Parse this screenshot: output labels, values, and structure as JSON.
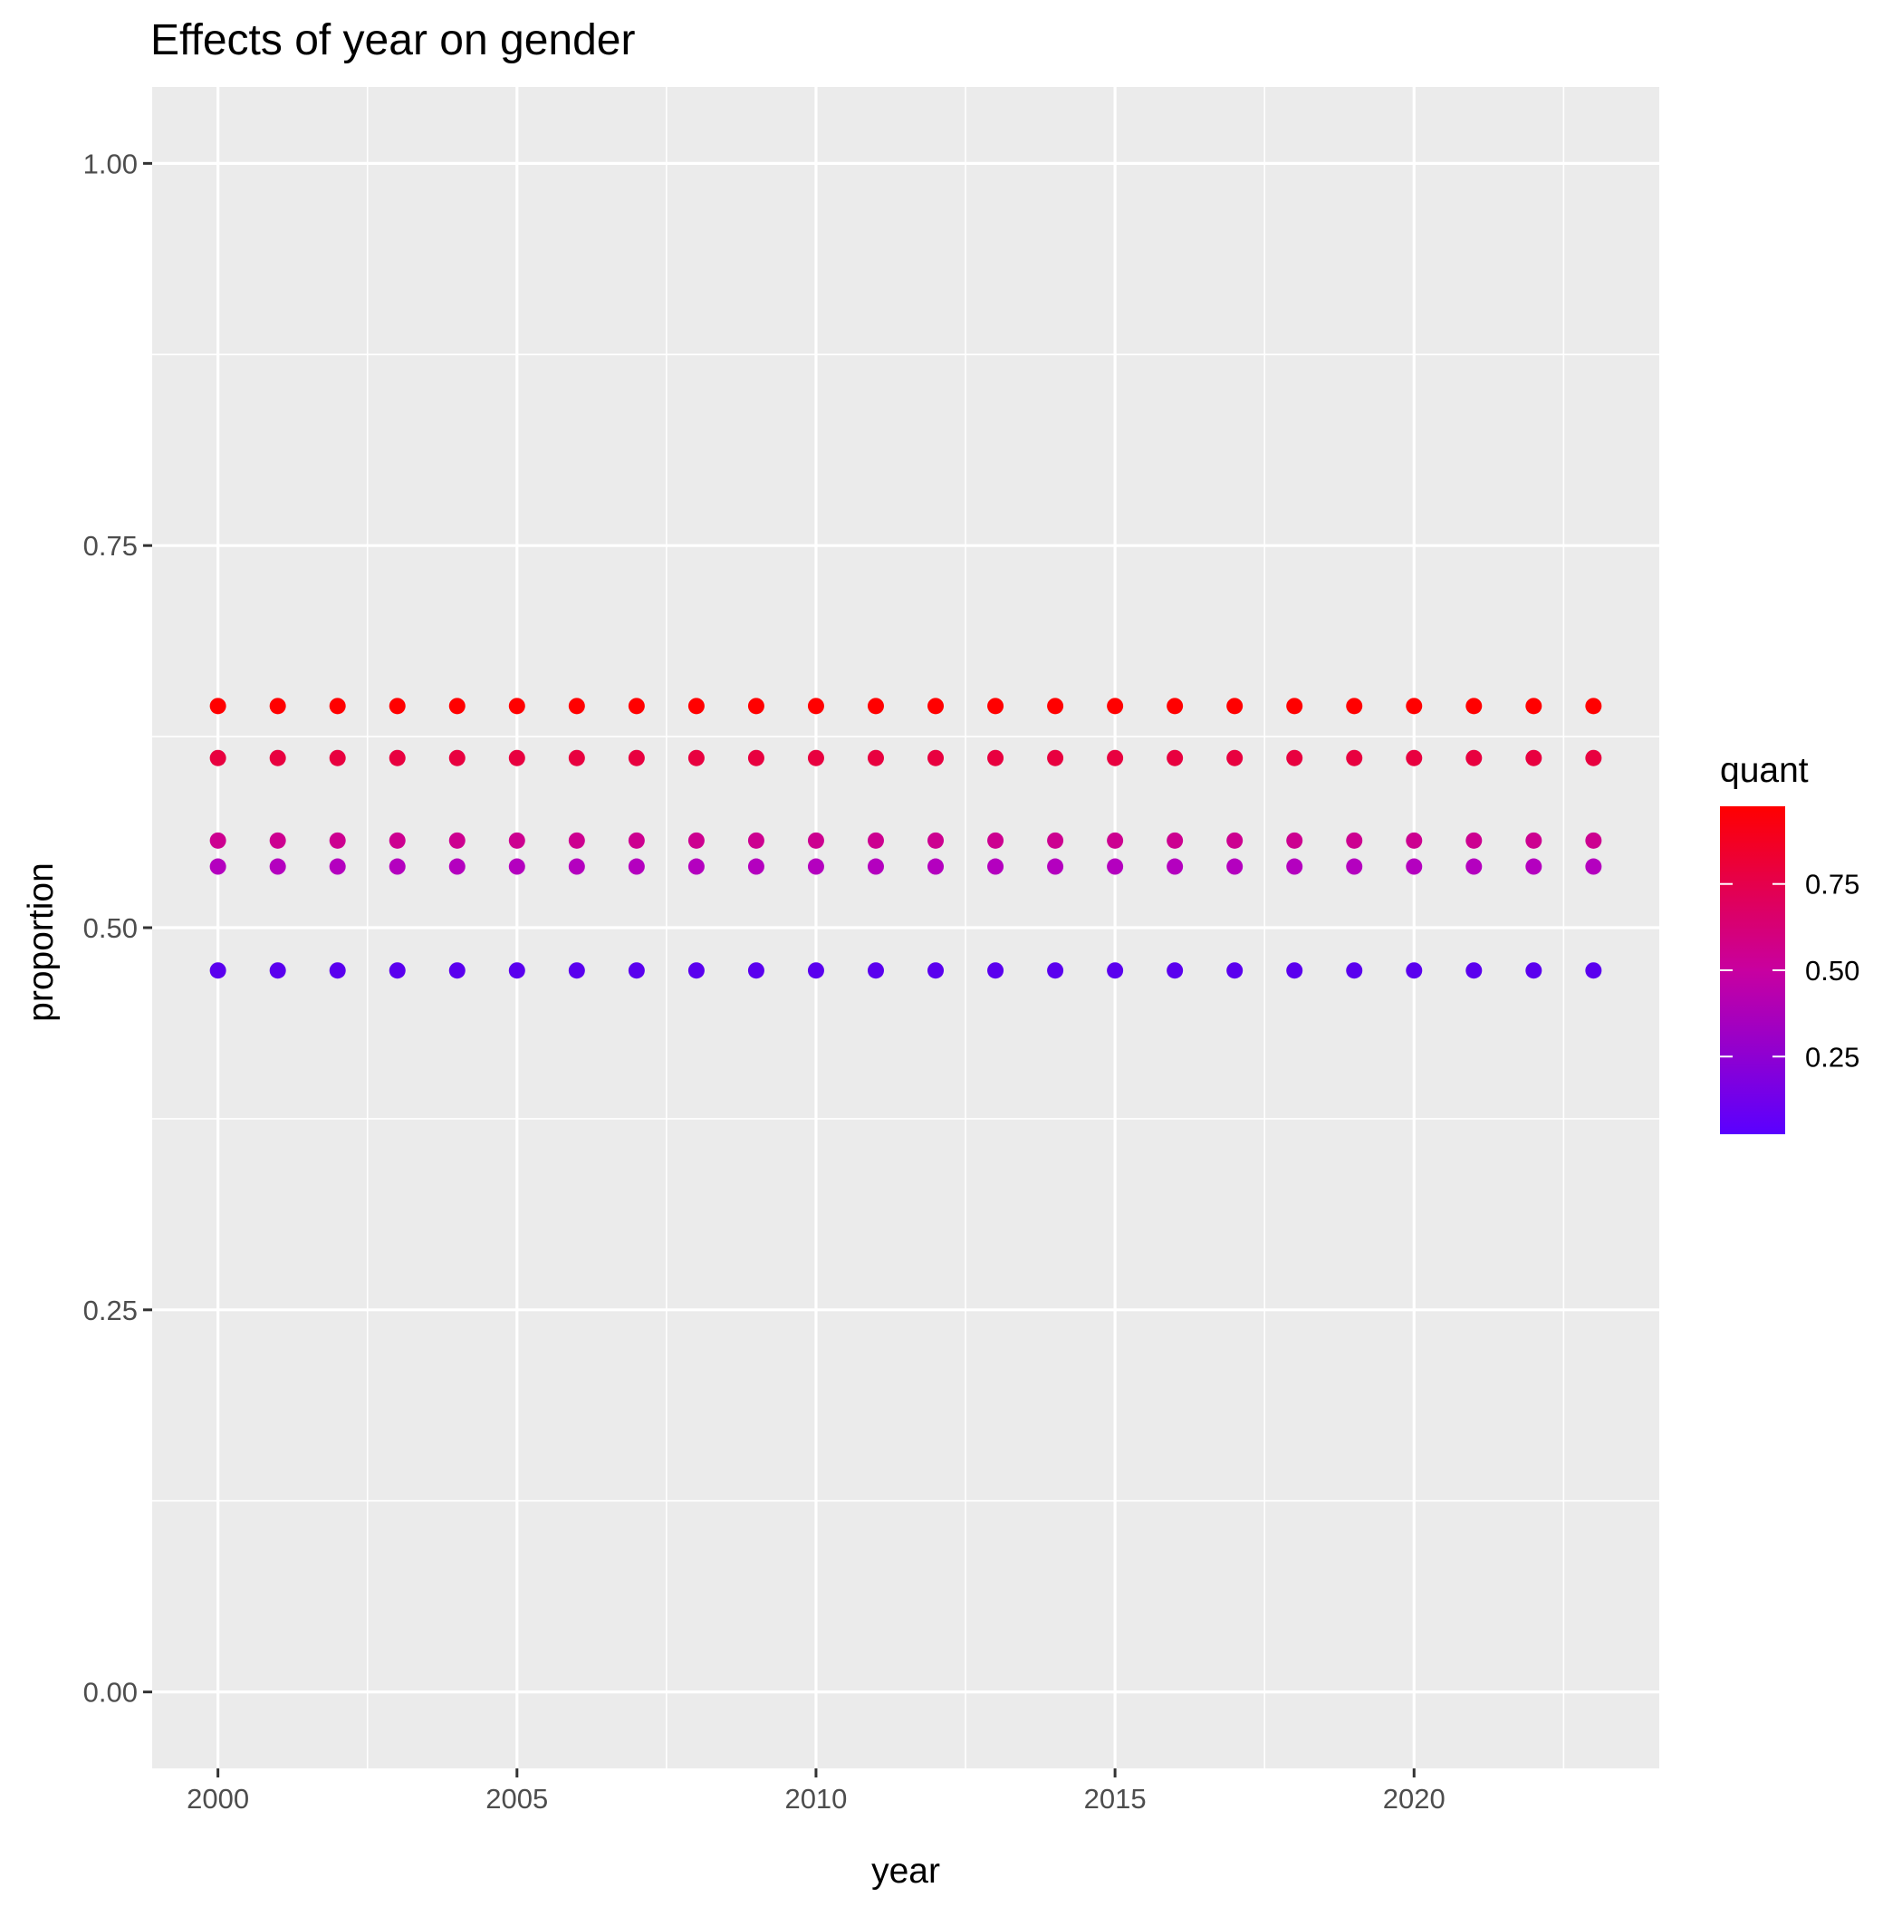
{
  "chart_data": {
    "type": "scatter",
    "title": "Effects of year on gender",
    "xlabel": "year",
    "ylabel": "proportion",
    "xlim": [
      1998.9,
      2024.1
    ],
    "ylim": [
      -0.05,
      1.05
    ],
    "x_ticks": [
      2000,
      2005,
      2010,
      2015,
      2020
    ],
    "x_tick_labels": [
      "2000",
      "2005",
      "2010",
      "2015",
      "2020"
    ],
    "y_ticks": [
      0.0,
      0.25,
      0.5,
      0.75,
      1.0
    ],
    "y_tick_labels": [
      "0.00",
      "0.25",
      "0.50",
      "0.75",
      "1.00"
    ],
    "grid": true,
    "x": [
      2000,
      2001,
      2002,
      2003,
      2004,
      2005,
      2006,
      2007,
      2008,
      2009,
      2010,
      2011,
      2012,
      2013,
      2014,
      2015,
      2016,
      2017,
      2018,
      2019,
      2020,
      2021,
      2022,
      2023
    ],
    "series": [
      {
        "quant": 0.975,
        "color": "#ff0000",
        "values": [
          0.645,
          0.645,
          0.645,
          0.645,
          0.645,
          0.645,
          0.645,
          0.645,
          0.645,
          0.645,
          0.645,
          0.645,
          0.645,
          0.645,
          0.645,
          0.645,
          0.645,
          0.645,
          0.645,
          0.645,
          0.645,
          0.645,
          0.645,
          0.645
        ]
      },
      {
        "quant": 0.75,
        "color": "#e8003f",
        "values": [
          0.611,
          0.611,
          0.611,
          0.611,
          0.611,
          0.611,
          0.611,
          0.611,
          0.611,
          0.611,
          0.611,
          0.611,
          0.611,
          0.611,
          0.611,
          0.611,
          0.611,
          0.611,
          0.611,
          0.611,
          0.611,
          0.611,
          0.611,
          0.611
        ]
      },
      {
        "quant": 0.5,
        "color": "#cc0090",
        "values": [
          0.557,
          0.557,
          0.557,
          0.557,
          0.557,
          0.557,
          0.557,
          0.557,
          0.557,
          0.557,
          0.557,
          0.557,
          0.557,
          0.557,
          0.557,
          0.557,
          0.557,
          0.557,
          0.557,
          0.557,
          0.557,
          0.557,
          0.557,
          0.557
        ]
      },
      {
        "quant": 0.4,
        "color": "#b400bf",
        "values": [
          0.54,
          0.54,
          0.54,
          0.54,
          0.54,
          0.54,
          0.54,
          0.54,
          0.54,
          0.54,
          0.54,
          0.54,
          0.54,
          0.54,
          0.54,
          0.54,
          0.54,
          0.54,
          0.54,
          0.54,
          0.54,
          0.54,
          0.54,
          0.54
        ]
      },
      {
        "quant": 0.025,
        "color": "#5a00ee",
        "values": [
          0.472,
          0.472,
          0.472,
          0.472,
          0.472,
          0.472,
          0.472,
          0.472,
          0.472,
          0.472,
          0.472,
          0.472,
          0.472,
          0.472,
          0.472,
          0.472,
          0.472,
          0.472,
          0.472,
          0.472,
          0.472,
          0.472,
          0.472,
          0.472
        ]
      }
    ],
    "legend": {
      "title": "quant",
      "type": "colorbar",
      "placement": "right",
      "low_color": "#5a00ff",
      "high_color": "#ff0000",
      "range": [
        0.025,
        0.975
      ],
      "ticks": [
        0.25,
        0.5,
        0.75
      ],
      "tick_labels": [
        "0.25",
        "0.50",
        "0.75"
      ]
    },
    "colors": {
      "panel": "#ebebeb",
      "grid": "#ffffff",
      "axis_text": "#4d4d4d"
    }
  }
}
